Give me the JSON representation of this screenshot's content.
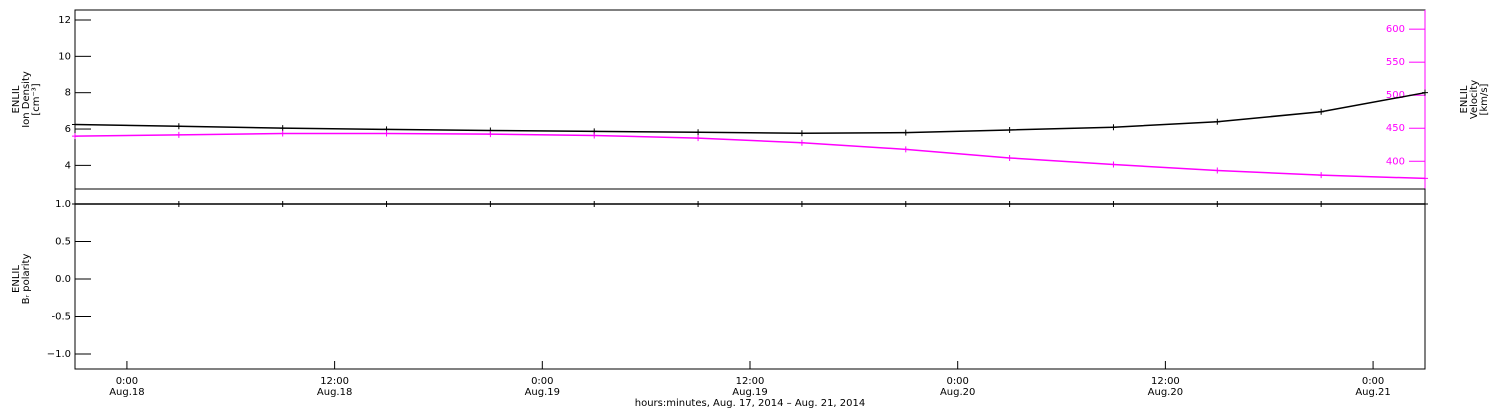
{
  "chart_data": [
    {
      "type": "line",
      "y_label_lines": [
        "ENLIL",
        "Ion Density",
        "[cm⁻³]"
      ],
      "y2_label_lines": [
        "ENLIL",
        "Velocity",
        "[km/s]"
      ],
      "x": [
        "2014-08-17T21:00",
        "2014-08-18T03:00",
        "2014-08-18T09:00",
        "2014-08-18T15:00",
        "2014-08-18T21:00",
        "2014-08-19T03:00",
        "2014-08-19T09:00",
        "2014-08-19T15:00",
        "2014-08-19T21:00",
        "2014-08-20T03:00",
        "2014-08-20T09:00",
        "2014-08-20T15:00",
        "2014-08-20T21:00",
        "2014-08-21T03:00"
      ],
      "xlim": [
        "2014-08-17T21:00",
        "2014-08-21T03:00"
      ],
      "ylim": [
        2.7,
        12.55
      ],
      "yticks": [
        4,
        6,
        8,
        10,
        12
      ],
      "y2lim": [
        358,
        629
      ],
      "y2ticks": [
        400,
        450,
        500,
        550,
        600
      ],
      "series": [
        {
          "name": "Ion Density",
          "color": "#000000",
          "values": [
            6.25,
            6.15,
            6.05,
            5.98,
            5.92,
            5.87,
            5.82,
            5.77,
            5.8,
            5.95,
            6.1,
            6.4,
            6.95,
            8.0
          ]
        },
        {
          "name": "Velocity",
          "color": "#ff00ff",
          "axis": "y2",
          "values": [
            438,
            440,
            442,
            442,
            441,
            439,
            435,
            428,
            418,
            405,
            395,
            386,
            379,
            374
          ]
        }
      ]
    },
    {
      "type": "line",
      "y_label_lines": [
        "ENLIL",
        "Bᵣ polarity"
      ],
      "x_label": "hours:minutes, Aug. 17, 2014 – Aug. 21, 2014",
      "x": [
        "2014-08-17T21:00",
        "2014-08-18T03:00",
        "2014-08-18T09:00",
        "2014-08-18T15:00",
        "2014-08-18T21:00",
        "2014-08-19T03:00",
        "2014-08-19T09:00",
        "2014-08-19T15:00",
        "2014-08-19T21:00",
        "2014-08-20T03:00",
        "2014-08-20T09:00",
        "2014-08-20T15:00",
        "2014-08-20T21:00",
        "2014-08-21T03:00"
      ],
      "xlim": [
        "2014-08-17T21:00",
        "2014-08-21T03:00"
      ],
      "xticks": [
        {
          "value": "2014-08-18T00:00",
          "label": [
            "0:00",
            "Aug.18"
          ]
        },
        {
          "value": "2014-08-18T12:00",
          "label": [
            "12:00",
            "Aug.18"
          ]
        },
        {
          "value": "2014-08-19T00:00",
          "label": [
            "0:00",
            "Aug.19"
          ]
        },
        {
          "value": "2014-08-19T12:00",
          "label": [
            "12:00",
            "Aug.19"
          ]
        },
        {
          "value": "2014-08-20T00:00",
          "label": [
            "0:00",
            "Aug.20"
          ]
        },
        {
          "value": "2014-08-20T12:00",
          "label": [
            "12:00",
            "Aug.20"
          ]
        },
        {
          "value": "2014-08-21T00:00",
          "label": [
            "0:00",
            "Aug.21"
          ]
        }
      ],
      "ylim": [
        -1.2,
        1.2
      ],
      "yticks": [
        {
          "value": 1,
          "label": "1.0"
        },
        0.5,
        {
          "value": 0,
          "label": "0.0"
        },
        -0.5,
        {
          "value": -1,
          "label": "−1.0"
        }
      ],
      "series": [
        {
          "name": "Br polarity",
          "color": "#000000",
          "values": [
            1,
            1,
            1,
            1,
            1,
            1,
            1,
            1,
            1,
            1,
            1,
            1,
            1,
            1
          ]
        }
      ]
    }
  ]
}
